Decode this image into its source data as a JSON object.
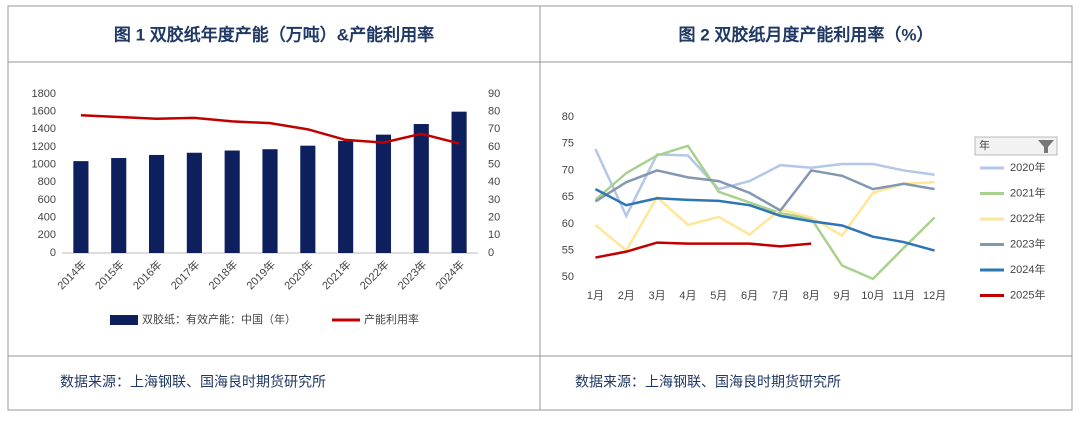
{
  "chart_data": [
    {
      "type": "bar",
      "title": "图 1  双胶纸年度产能（万吨）&产能利用率",
      "source": "数据来源：上海钢联、国海良时期货研究所",
      "categories": [
        "2014年",
        "2015年",
        "2016年",
        "2017年",
        "2018年",
        "2019年",
        "2020年",
        "2021年",
        "2022年",
        "2023年",
        "2024年"
      ],
      "series": [
        {
          "name": "双胶纸：有效产能：中国（年）",
          "color": "#0d1f5c",
          "type": "bar",
          "values": [
            1040,
            1075,
            1110,
            1135,
            1160,
            1175,
            1215,
            1270,
            1340,
            1460,
            1600
          ]
        },
        {
          "name": "产能利用率",
          "color": "#c00000",
          "type": "line",
          "axis": "y2",
          "values": [
            78,
            77,
            76,
            76.5,
            74.5,
            73.5,
            70,
            64,
            62.5,
            67.5,
            62
          ]
        }
      ],
      "ylim": [
        0,
        1800
      ],
      "yticks": [
        0,
        200,
        400,
        600,
        800,
        1000,
        1200,
        1400,
        1600,
        1800
      ],
      "y2lim": [
        0,
        90
      ],
      "y2ticks": [
        0,
        10,
        20,
        30,
        40,
        50,
        60,
        70,
        80,
        90
      ],
      "legend": "bottom"
    },
    {
      "type": "line",
      "title": "图 2 双胶纸月度产能利用率（%）",
      "source": "数据来源：上海钢联、国海良时期货研究所",
      "categories": [
        "1月",
        "2月",
        "3月",
        "4月",
        "5月",
        "6月",
        "7月",
        "8月",
        "9月",
        "10月",
        "11月",
        "12月"
      ],
      "legend_title": "年",
      "legend": "right",
      "series": [
        {
          "name": "2020年",
          "color": "#b4c7e7",
          "values": [
            74,
            61.5,
            73,
            72.8,
            66.5,
            68,
            71,
            70.5,
            71.2,
            71.2,
            70,
            69.2
          ]
        },
        {
          "name": "2021年",
          "color": "#a9d18e",
          "values": [
            64.5,
            69.5,
            72.8,
            74.6,
            66,
            64,
            62,
            61,
            52.2,
            49.7,
            55.5,
            61.2
          ]
        },
        {
          "name": "2022年",
          "color": "#ffe699",
          "values": [
            59.8,
            55,
            65,
            59.8,
            61.3,
            58,
            62.7,
            61.2,
            57.8,
            65.8,
            67.5,
            67.8
          ]
        },
        {
          "name": "2023年",
          "color": "#8497b0",
          "values": [
            64.2,
            67.8,
            70,
            68.7,
            68,
            65.8,
            62.5,
            70,
            69,
            66.5,
            67.5,
            66.5
          ]
        },
        {
          "name": "2024年",
          "color": "#2e75b6",
          "values": [
            66.5,
            63.5,
            64.8,
            64.5,
            64.3,
            63.5,
            61.5,
            60.5,
            59.7,
            57.6,
            56.6,
            55
          ]
        },
        {
          "name": "2025年",
          "color": "#c00000",
          "values": [
            53.7,
            54.8,
            56.5,
            56.3,
            56.3,
            56.3,
            55.8,
            56.3,
            null,
            null,
            null,
            null
          ]
        }
      ],
      "ylim": [
        48,
        80
      ],
      "yticks": [
        50,
        55,
        60,
        65,
        70,
        75,
        80
      ]
    }
  ]
}
